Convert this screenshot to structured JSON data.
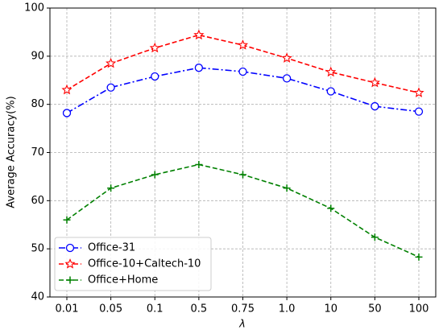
{
  "chart_data": {
    "type": "line",
    "xlabel": "λ",
    "ylabel": "Average Accuracy(%)",
    "categories": [
      "0.01",
      "0.05",
      "0.1",
      "0.5",
      "0.75",
      "1.0",
      "10",
      "50",
      "100"
    ],
    "series": [
      {
        "name": "Office-31",
        "color": "#0000ff",
        "marker": "circle",
        "linestyle": "dashdot",
        "values": [
          78.2,
          83.5,
          85.8,
          87.6,
          86.8,
          85.4,
          82.7,
          79.6,
          78.5
        ]
      },
      {
        "name": "Office-10+Caltech-10",
        "color": "#ff0000",
        "marker": "star",
        "linestyle": "dashed",
        "values": [
          83.0,
          88.5,
          91.7,
          94.4,
          92.3,
          89.6,
          86.7,
          84.5,
          82.4
        ]
      },
      {
        "name": "Office+Home",
        "color": "#008000",
        "marker": "plus",
        "linestyle": "dashed",
        "values": [
          56.0,
          62.6,
          65.4,
          67.5,
          65.4,
          62.6,
          58.4,
          52.4,
          48.3
        ]
      }
    ],
    "ylim": [
      40,
      100
    ],
    "yticks": [
      40,
      50,
      60,
      70,
      80,
      90,
      100
    ],
    "grid": true,
    "legend": "lower left"
  }
}
